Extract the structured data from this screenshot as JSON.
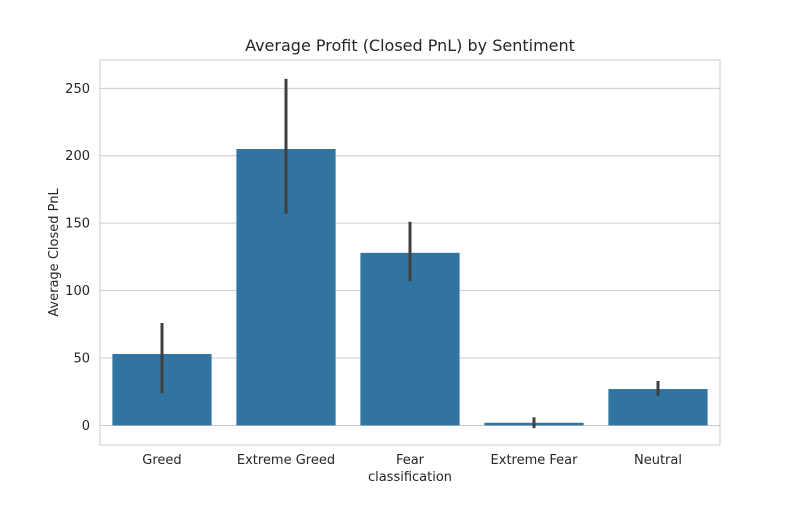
{
  "chart_data": {
    "type": "bar",
    "title": "Average Profit (Closed PnL) by Sentiment",
    "xlabel": "classification",
    "ylabel": "Average Closed PnL",
    "categories": [
      "Greed",
      "Extreme Greed",
      "Fear",
      "Extreme Fear",
      "Neutral"
    ],
    "values": [
      53,
      205,
      128,
      2,
      27
    ],
    "error_bars": [
      [
        24,
        76
      ],
      [
        157,
        257
      ],
      [
        107,
        151
      ],
      [
        -2,
        6
      ],
      [
        22,
        33
      ]
    ],
    "ylim": [
      -14.5,
      271
    ],
    "yticks": [
      0,
      50,
      100,
      150,
      200,
      250
    ],
    "grid": true,
    "legend": "none",
    "bar_color": "#3274a1",
    "error_color": "#3f3f3f",
    "grid_color": "#cccccc"
  }
}
